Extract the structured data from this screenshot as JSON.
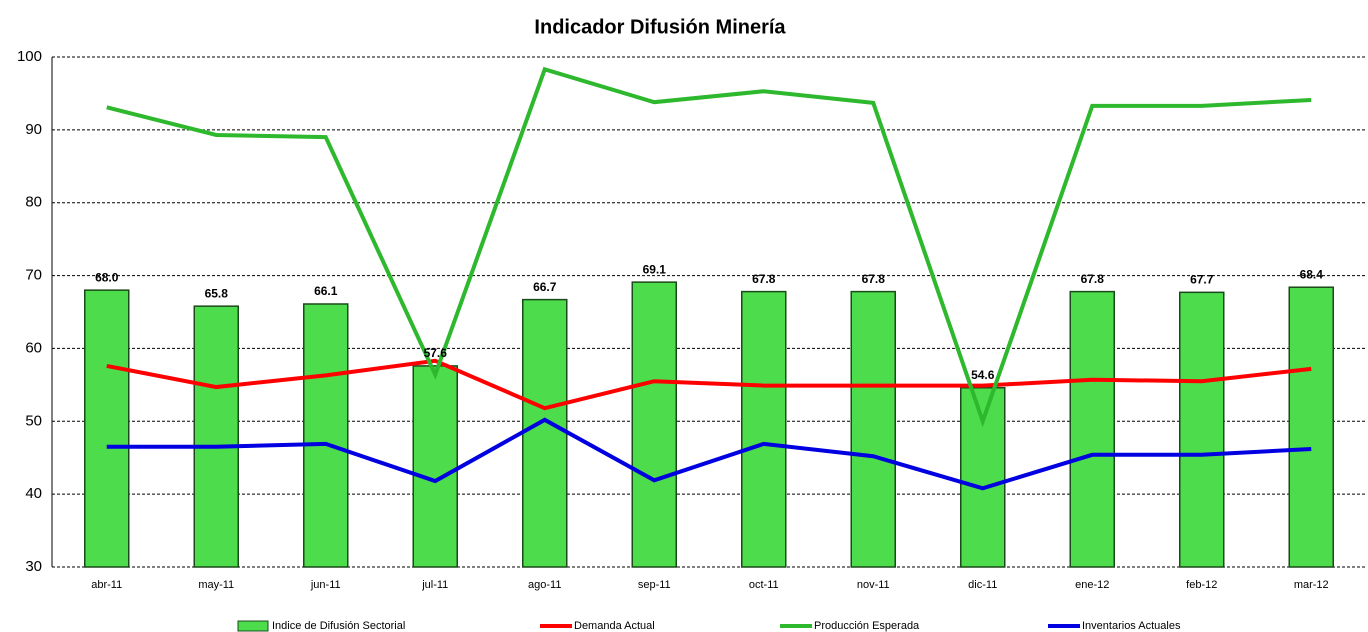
{
  "chart_data": {
    "type": "bar-line",
    "title": "Indicador Difusión Minería",
    "categories": [
      "abr-11",
      "may-11",
      "jun-11",
      "jul-11",
      "ago-11",
      "sep-11",
      "oct-11",
      "nov-11",
      "dic-11",
      "ene-12",
      "feb-12",
      "mar-12"
    ],
    "series": [
      {
        "name": "Indice de Difusión Sectorial",
        "type": "bar",
        "color": "#4cdc4c",
        "values": [
          68.0,
          65.8,
          66.1,
          57.6,
          66.7,
          69.1,
          67.8,
          67.8,
          54.6,
          67.8,
          67.7,
          68.4
        ],
        "value_labels": [
          "68.0",
          "65.8",
          "66.1",
          "57.6",
          "66.7",
          "69.1",
          "67.8",
          "67.8",
          "54.6",
          "67.8",
          "67.7",
          "68.4"
        ]
      },
      {
        "name": "Demanda Actual",
        "type": "line",
        "color": "#ff0000",
        "values": [
          57.6,
          54.7,
          56.3,
          58.3,
          51.8,
          55.5,
          54.9,
          54.9,
          54.9,
          55.7,
          55.5,
          57.2
        ]
      },
      {
        "name": "Producción Esperada",
        "type": "line",
        "color": "#2db82d",
        "values": [
          93.1,
          89.3,
          89.0,
          56.4,
          98.3,
          93.8,
          95.3,
          93.7,
          50.0,
          93.3,
          93.3,
          94.1
        ]
      },
      {
        "name": "Inventarios Actuales",
        "type": "line",
        "color": "#0000e0",
        "values": [
          46.5,
          46.5,
          46.9,
          41.8,
          50.2,
          41.9,
          46.9,
          45.2,
          40.8,
          45.4,
          45.4,
          46.2
        ]
      }
    ],
    "ylim": [
      30,
      100
    ],
    "yticks": [
      30,
      40,
      50,
      60,
      70,
      80,
      90,
      100
    ],
    "grid": true,
    "legend": "bottom"
  }
}
